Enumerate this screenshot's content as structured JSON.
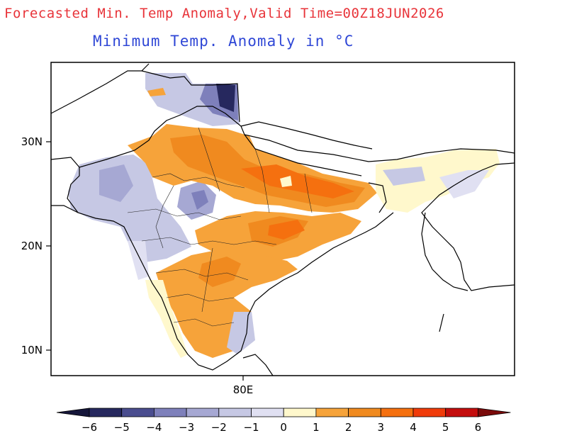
{
  "title": "Forecasted Min. Temp Anomaly,Valid Time=00Z18JUN2026",
  "subtitle": "Minimum Temp. Anomaly in °C",
  "axes": {
    "lat_ticks": [
      "30N",
      "20N",
      "10N"
    ],
    "lon_ticks": [
      "80E"
    ]
  },
  "colorbar": {
    "labels": [
      "−6",
      "−5",
      "−4",
      "−3",
      "−2",
      "−1",
      "0",
      "1",
      "2",
      "3",
      "4",
      "5",
      "6"
    ],
    "colors": [
      "#26285e",
      "#4a4d8f",
      "#7e80bb",
      "#a6a8d3",
      "#c6c8e4",
      "#e0e0f2",
      "#fff8cc",
      "#f6a33a",
      "#f08a1f",
      "#f5700f",
      "#f03b0a",
      "#c40d0d"
    ],
    "low_end_color": "#15163a",
    "high_end_color": "#7a0a0a"
  },
  "chart_data": {
    "type": "heatmap",
    "title": "Forecasted Min. Temp Anomaly,Valid Time=00Z18JUN2026",
    "subtitle": "Minimum Temp. Anomaly in °C",
    "variable": "Minimum Temp. Anomaly",
    "unit": "°C",
    "valid_time": "00Z18JUN2026",
    "lon_range": [
      60,
      105
    ],
    "lat_range": [
      7.5,
      37.5
    ],
    "levels": [
      -6,
      -5,
      -4,
      -3,
      -2,
      -1,
      0,
      1,
      2,
      3,
      4,
      5,
      6
    ]
  }
}
